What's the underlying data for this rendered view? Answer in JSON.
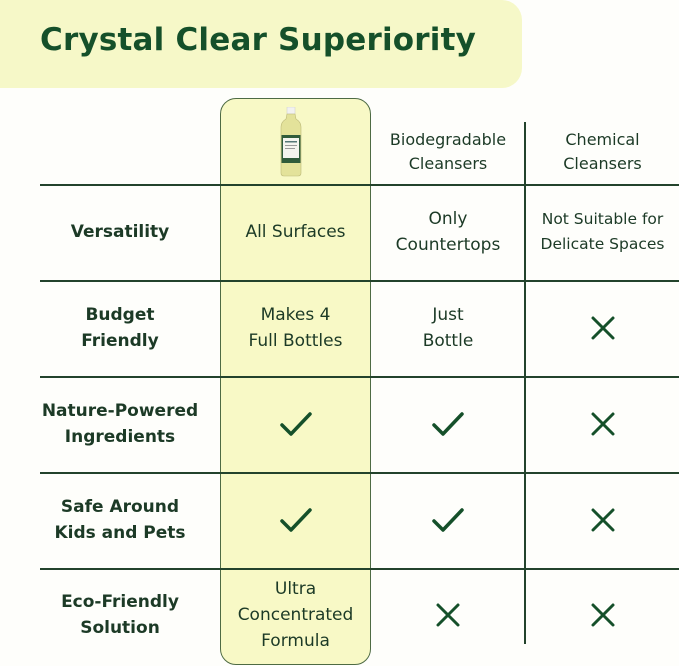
{
  "title": "Crystal Clear Superiority",
  "colors": {
    "accent_green": "#15502a",
    "highlight": "#f8f9c6"
  },
  "columns": [
    {
      "label": "",
      "image": "product-bottle"
    },
    {
      "label": "Biodegradable\nCleansers"
    },
    {
      "label": "Chemical\nCleansers"
    }
  ],
  "rows": [
    {
      "label": "Versatility",
      "values": [
        {
          "text": "All Surfaces"
        },
        {
          "text": "Only\nCountertops"
        },
        {
          "text": "Not Suitable for\nDelicate Spaces"
        }
      ]
    },
    {
      "label": "Budget\nFriendly",
      "values": [
        {
          "text": "Makes 4\nFull Bottles"
        },
        {
          "text": "Just\nBottle"
        },
        {
          "icon": "x-icon"
        }
      ]
    },
    {
      "label": "Nature-Powered\nIngredients",
      "values": [
        {
          "icon": "check-icon"
        },
        {
          "icon": "check-icon"
        },
        {
          "icon": "x-icon"
        }
      ]
    },
    {
      "label": "Safe Around\nKids and Pets",
      "values": [
        {
          "icon": "check-icon"
        },
        {
          "icon": "check-icon"
        },
        {
          "icon": "x-icon"
        }
      ]
    },
    {
      "label": "Eco-Friendly\nSolution",
      "values": [
        {
          "text": "Ultra\nConcentrated\nFormula"
        },
        {
          "icon": "x-icon"
        },
        {
          "icon": "x-icon"
        }
      ]
    }
  ]
}
